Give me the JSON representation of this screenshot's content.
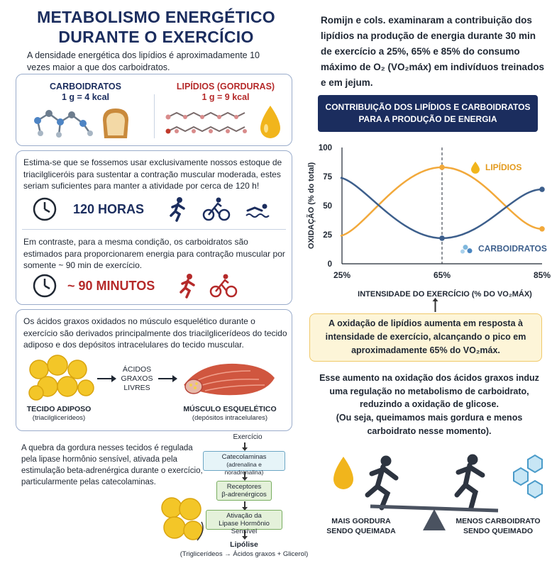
{
  "left": {
    "title_line1": "METABOLISMO ENERGÉTICO",
    "title_line2": "DURANTE O EXERCÍCIO",
    "intro": "A densidade energética dos lipídios é aproximadamente 10 vezes maior a que dos carboidratos.",
    "carb_title": "CARBOIDRATOS",
    "carb_value": "1 g = 4 kcal",
    "lipid_title": "LIPÍDIOS (GORDURAS)",
    "lipid_value": "1 g = 9 kcal",
    "estimate_text": "Estima-se que se fossemos usar exclusivamente nossos estoque de triacilgliceróis para sustentar a contração muscular moderada, estes seriam suficientes para manter a atividade por cerca de 120 h!",
    "hours_label": "120 HORAS",
    "contrast_text": "Em contraste, para a mesma condição, os carboidratos são estimados para proporcionarem energia para contração muscular por somente ~ 90 min de exercício.",
    "minutes_label": "~ 90 MINUTOS",
    "fatty_acids_text": "Os ácidos graxos oxidados no músculo esquelético durante o exercício são derivados principalmente dos triacilglicerídeos do tecido adiposo e dos depósitos intracelulares do tecido muscular.",
    "ffa_label": "ÁCIDOS GRAXOS LIVRES",
    "adipose_label": "TECIDO ADIPOSO",
    "adipose_sub": "(triacilglicerídeos)",
    "muscle_label": "MÚSCULO ESQUELÉTICO",
    "muscle_sub": "(depósitos intracelulares)",
    "lipase_text": "A quebra da gordura nesses tecidos é regulada pela lipase hormônio sensível, ativada pela estimulação beta-adrenérgica durante o exercício, particularmente pelas catecolaminas.",
    "flow": {
      "step1": "Exercício",
      "step2_title": "Catecolaminas",
      "step2_sub": "(adrenalina e noradrenalina)",
      "step3_title": "Receptores",
      "step3_sub": "β-adrenérgicos",
      "step4_title": "Ativação da",
      "step4_sub": "Lipase Hormônio Sensível",
      "step5": "Lipólise",
      "step5_sub": "(Triglicerídeos → Ácidos graxos + Glicerol)"
    }
  },
  "right": {
    "romijn_text": "Romijn e cols. examinaram a contribuição dos lipídios na produção de energia durante 30 min de exercício a 25%, 65% e 85% do consumo máximo de O₂ (VO₂máx) em indivíduos treinados e em jejum.",
    "banner_line1": "CONTRIBUIÇÃO DOS LIPÍDIOS E CARBOIDRATOS",
    "banner_line2": "PARA A PRODUÇÃO DE ENERGIA",
    "callout_text": "A oxidação de lipídios aumenta em resposta à intensidade de exercício, alcançando o pico em aproximadamente 65% do VO₂máx.",
    "regulation_text": "Esse aumento na oxidação dos ácidos graxos induz uma regulação no metabolismo de carboidrato, reduzindo a oxidação de glicose.",
    "regulation_text2": "(Ou seja, queimamos mais gordura e menos carboidrato nesse momento).",
    "more_fat_label": "MAIS GORDURA SENDO QUEIMADA",
    "less_carb_label": "MENOS CARBOIDRATO SENDO QUEIMADO"
  },
  "chart_data": {
    "type": "line",
    "ylabel": "OXIDAÇÃO (% do total)",
    "xlabel": "INTENSIDADE DO EXERCÍCIO (% DO VO₂MÁX)",
    "ylim": [
      0,
      100
    ],
    "yticks": [
      "0",
      "25",
      "50",
      "75",
      "100"
    ],
    "categories": [
      "25%",
      "65%",
      "85%"
    ],
    "series": [
      {
        "name": "LIPÍDIOS",
        "color": "#f2a93b",
        "values": [
          28,
          83,
          30
        ]
      },
      {
        "name": "CARBOIDRATOS",
        "color": "#3d5f8c",
        "values": [
          70,
          22,
          64
        ]
      }
    ]
  },
  "colors": {
    "navy": "#1b2d5e",
    "red": "#b52a2a",
    "orange": "#f2a93b",
    "blue": "#3d5f8c"
  }
}
